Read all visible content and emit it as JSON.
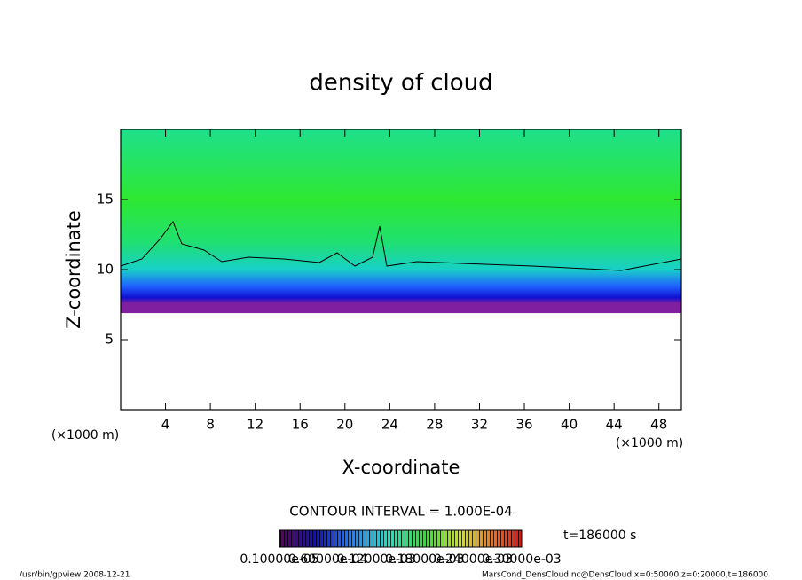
{
  "chart_data": {
    "type": "contour",
    "title": "density of cloud",
    "x_label": "X-coordinate",
    "y_label": "Z-coordinate",
    "x_unit": "(×1000 m)",
    "y_unit": "(×1000 m)",
    "xlim": [
      0,
      50
    ],
    "xticks": [
      4,
      8,
      12,
      16,
      20,
      24,
      28,
      32,
      36,
      40,
      44,
      48
    ],
    "ylim": [
      0,
      20
    ],
    "yticks": [
      5,
      10,
      15
    ],
    "contour_interval": "CONTOUR INTERVAL = 1.000E-04",
    "time": "t=186000 s",
    "colorbar_labels": [
      "0.10000e-05",
      "0.60000e-04",
      "0.12000e-03",
      "0.18000e-03",
      "0.24000e-03",
      "0.30000e-03"
    ],
    "footer_left": "/usr/bin/gpview  2008-12-21",
    "footer_right": "MarsCond_DensCloud.nc@DensCloud,x=0:50000,z=0:20000,t=186000"
  }
}
